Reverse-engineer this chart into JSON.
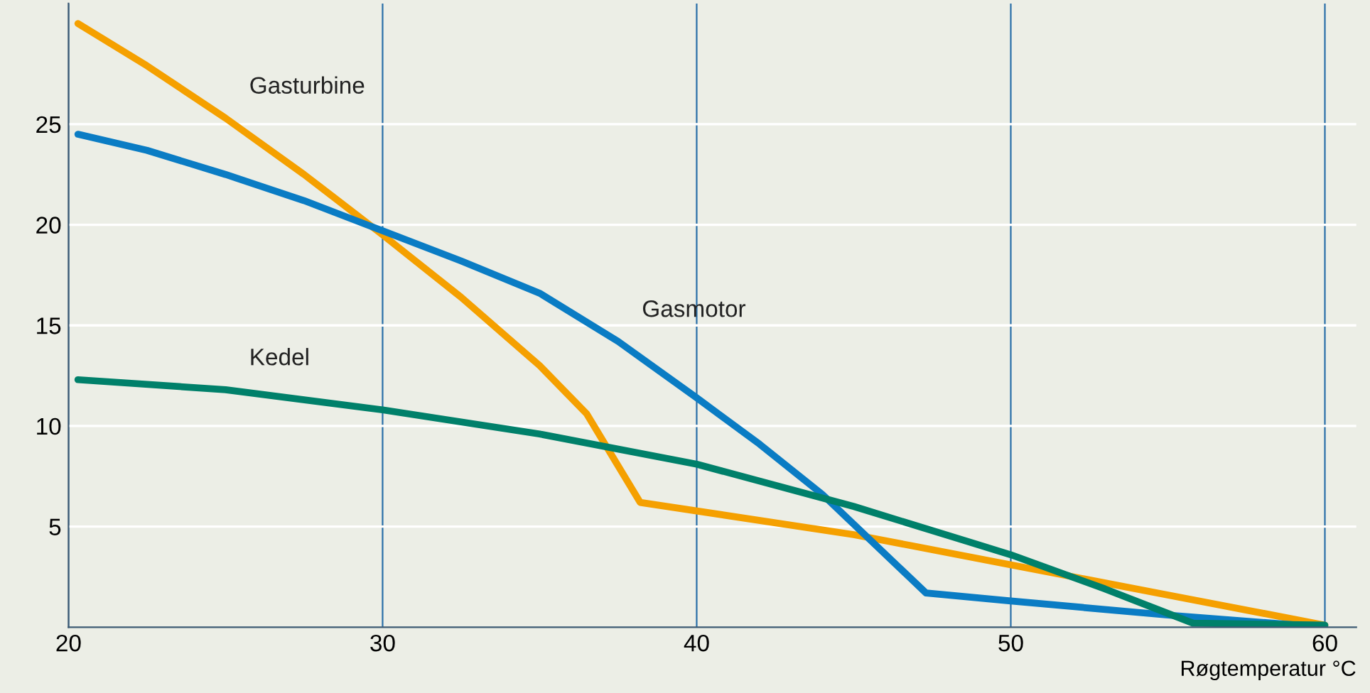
{
  "chart_data": {
    "type": "line",
    "xlabel": "Røgtemperatur °C",
    "xlim": [
      20,
      61
    ],
    "ylim": [
      0,
      31
    ],
    "xticks": [
      20,
      30,
      40,
      50,
      60
    ],
    "yticks": [
      5,
      10,
      15,
      20,
      25
    ],
    "grid": true,
    "legend": false,
    "series": [
      {
        "name": "Gasturbine",
        "color": "#f5a000",
        "x": [
          20.3,
          22.5,
          25,
          27.5,
          30,
          32.5,
          35,
          36.5,
          38.2,
          45,
          50,
          55,
          60
        ],
        "values": [
          30,
          27.9,
          25.3,
          22.5,
          19.5,
          16.4,
          13,
          10.6,
          6.2,
          4.6,
          3.1,
          1.6,
          0.1
        ]
      },
      {
        "name": "Gasmotor",
        "color": "#0a7cc4",
        "x": [
          20.3,
          22.5,
          25,
          27.5,
          30,
          32.5,
          35,
          37.5,
          40,
          42,
          44,
          47.3,
          50,
          55,
          60
        ],
        "values": [
          24.5,
          23.7,
          22.5,
          21.2,
          19.7,
          18.2,
          16.6,
          14.2,
          11.4,
          9.1,
          6.6,
          1.7,
          1.3,
          0.6,
          0
        ]
      },
      {
        "name": "Kedel",
        "color": "#00806a",
        "x": [
          20.3,
          25,
          30,
          35,
          40,
          45,
          50,
          53,
          55.8,
          60
        ],
        "values": [
          12.3,
          11.8,
          10.8,
          9.6,
          8.1,
          6.0,
          3.6,
          1.9,
          0.2,
          0.1
        ]
      }
    ]
  }
}
